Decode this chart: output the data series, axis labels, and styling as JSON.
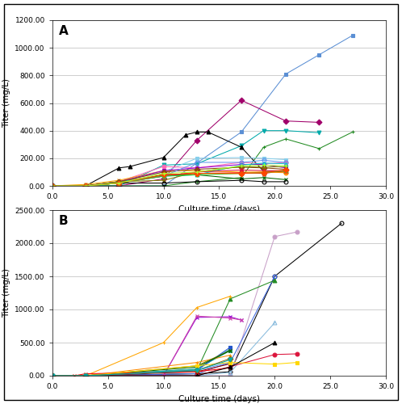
{
  "panel_A": {
    "title": "A",
    "ylabel": "Titer (mg/L)",
    "xlabel": "Culture time (days)",
    "xlim": [
      0,
      30
    ],
    "ylim": [
      0,
      1200
    ],
    "yticks": [
      0,
      200,
      400,
      600,
      800,
      1000,
      1200
    ],
    "xticks": [
      0,
      5,
      10,
      15,
      20,
      25,
      30
    ],
    "series": [
      {
        "color": "#5B8FD4",
        "marker": "s",
        "fillstyle": "full",
        "x": [
          0,
          3,
          6,
          10,
          13,
          17,
          21,
          24,
          27
        ],
        "y": [
          0,
          0,
          0,
          0,
          165,
          390,
          810,
          950,
          1090
        ]
      },
      {
        "color": "#A0006A",
        "marker": "D",
        "fillstyle": "full",
        "x": [
          0,
          3,
          6,
          10,
          13,
          17,
          21,
          24
        ],
        "y": [
          0,
          0,
          0,
          50,
          330,
          620,
          470,
          460
        ]
      },
      {
        "color": "#00AAAA",
        "marker": "v",
        "fillstyle": "full",
        "x": [
          0,
          3,
          6,
          10,
          13,
          17,
          19,
          21,
          24
        ],
        "y": [
          0,
          0,
          0,
          150,
          160,
          290,
          400,
          400,
          385
        ]
      },
      {
        "color": "#228B22",
        "marker": "+",
        "fillstyle": "full",
        "x": [
          0,
          3,
          6,
          10,
          13,
          17,
          19,
          21,
          24,
          27
        ],
        "y": [
          0,
          0,
          0,
          0,
          30,
          60,
          280,
          340,
          270,
          390
        ]
      },
      {
        "color": "#000000",
        "marker": "^",
        "fillstyle": "full",
        "x": [
          0,
          3,
          6,
          7,
          10,
          12,
          13,
          14,
          17,
          19,
          21
        ],
        "y": [
          0,
          0,
          130,
          140,
          205,
          370,
          390,
          390,
          280,
          105,
          105
        ]
      },
      {
        "color": "#87CEEB",
        "marker": "s",
        "fillstyle": "full",
        "x": [
          0,
          3,
          6,
          10,
          13,
          17,
          19,
          21
        ],
        "y": [
          0,
          0,
          30,
          100,
          200,
          205,
          200,
          190
        ]
      },
      {
        "color": "#FF69B4",
        "marker": "o",
        "fillstyle": "full",
        "x": [
          0,
          3,
          6,
          10,
          13,
          17,
          19,
          21
        ],
        "y": [
          0,
          0,
          30,
          140,
          130,
          170,
          160,
          170
        ]
      },
      {
        "color": "#FFA500",
        "marker": "x",
        "fillstyle": "full",
        "x": [
          0,
          3,
          6,
          10,
          13,
          17,
          19,
          21
        ],
        "y": [
          0,
          10,
          40,
          110,
          110,
          100,
          100,
          100
        ]
      },
      {
        "color": "#9400D3",
        "marker": "s",
        "fillstyle": "full",
        "x": [
          0,
          3,
          6,
          10,
          13,
          17,
          19,
          21
        ],
        "y": [
          0,
          0,
          30,
          110,
          130,
          155,
          155,
          130
        ]
      },
      {
        "color": "#FF0000",
        "marker": "o",
        "fillstyle": "full",
        "x": [
          0,
          3,
          6,
          10,
          13,
          17,
          19,
          21
        ],
        "y": [
          0,
          0,
          30,
          80,
          90,
          95,
          90,
          110
        ]
      },
      {
        "color": "#00CED1",
        "marker": "^",
        "fillstyle": "full",
        "x": [
          0,
          3,
          6,
          10,
          13,
          17,
          19,
          21
        ],
        "y": [
          0,
          0,
          30,
          70,
          80,
          150,
          165,
          160
        ]
      },
      {
        "color": "#8B4513",
        "marker": "D",
        "fillstyle": "full",
        "x": [
          0,
          3,
          6,
          10,
          13,
          17,
          19,
          21
        ],
        "y": [
          0,
          0,
          30,
          100,
          120,
          135,
          130,
          120
        ]
      },
      {
        "color": "#808000",
        "marker": "x",
        "fillstyle": "full",
        "x": [
          0,
          3,
          6,
          10,
          13,
          17,
          19,
          21
        ],
        "y": [
          0,
          0,
          30,
          40,
          100,
          140,
          135,
          140
        ]
      },
      {
        "color": "#FF8C00",
        "marker": "o",
        "fillstyle": "full",
        "x": [
          0,
          3,
          6,
          10,
          13,
          17,
          19,
          21
        ],
        "y": [
          0,
          0,
          20,
          80,
          90,
          90,
          100,
          95
        ]
      },
      {
        "color": "#006400",
        "marker": "x",
        "fillstyle": "full",
        "x": [
          0,
          3,
          6,
          10,
          13,
          17,
          19,
          21
        ],
        "y": [
          0,
          0,
          20,
          80,
          80,
          50,
          60,
          45
        ]
      },
      {
        "color": "#6495ED",
        "marker": "o",
        "fillstyle": "none",
        "x": [
          0,
          3,
          6,
          10,
          13,
          17,
          19,
          21
        ],
        "y": [
          0,
          0,
          20,
          70,
          170,
          170,
          185,
          170
        ]
      },
      {
        "color": "#000000",
        "marker": "o",
        "fillstyle": "none",
        "x": [
          0,
          3,
          6,
          10,
          13,
          17,
          19,
          21
        ],
        "y": [
          0,
          0,
          20,
          20,
          30,
          40,
          30,
          30
        ]
      },
      {
        "color": "#DC143C",
        "marker": "^",
        "fillstyle": "full",
        "x": [
          0,
          3,
          6,
          10,
          13,
          17,
          19,
          21
        ],
        "y": [
          0,
          0,
          20,
          70,
          100,
          115,
          110,
          110
        ]
      },
      {
        "color": "#32CD32",
        "marker": "s",
        "fillstyle": "full",
        "x": [
          0,
          3,
          6,
          10,
          13,
          17,
          19,
          21
        ],
        "y": [
          0,
          0,
          20,
          70,
          80,
          90,
          95,
          110
        ]
      },
      {
        "color": "#FF4500",
        "marker": "D",
        "fillstyle": "full",
        "x": [
          0,
          3,
          6,
          10,
          13,
          17,
          19,
          21
        ],
        "y": [
          0,
          0,
          20,
          80,
          90,
          90,
          95,
          115
        ]
      },
      {
        "color": "#ADFF2F",
        "marker": "+",
        "fillstyle": "full",
        "x": [
          0,
          3,
          6,
          10,
          13,
          17,
          19,
          21
        ],
        "y": [
          0,
          0,
          20,
          90,
          100,
          145,
          150,
          145
        ]
      }
    ]
  },
  "panel_B": {
    "title": "B",
    "ylabel": "Titer (mg/L)",
    "xlabel": "Culture time (days)",
    "xlim": [
      0,
      30
    ],
    "ylim": [
      0,
      2500
    ],
    "yticks": [
      0,
      500,
      1000,
      1500,
      2000,
      2500
    ],
    "xticks": [
      0,
      5,
      10,
      15,
      20,
      25,
      30
    ],
    "series": [
      {
        "color": "#000000",
        "marker": "o",
        "fillstyle": "none",
        "x": [
          0,
          3,
          13,
          16,
          20,
          26
        ],
        "y": [
          0,
          0,
          30,
          60,
          1500,
          2300
        ]
      },
      {
        "color": "#C8A0C8",
        "marker": "o",
        "fillstyle": "full",
        "x": [
          0,
          3,
          13,
          16,
          20,
          22
        ],
        "y": [
          0,
          0,
          0,
          0,
          2100,
          2170
        ]
      },
      {
        "color": "#4169E1",
        "marker": "s",
        "fillstyle": "none",
        "x": [
          0,
          3,
          13,
          16,
          20
        ],
        "y": [
          0,
          0,
          30,
          200,
          1500
        ]
      },
      {
        "color": "#228B22",
        "marker": "^",
        "fillstyle": "full",
        "x": [
          0,
          3,
          13,
          16,
          20
        ],
        "y": [
          0,
          0,
          80,
          1160,
          1440
        ]
      },
      {
        "color": "#FFA500",
        "marker": "+",
        "fillstyle": "full",
        "x": [
          0,
          3,
          10,
          13,
          16
        ],
        "y": [
          0,
          0,
          500,
          1030,
          1200
        ]
      },
      {
        "color": "#9400D3",
        "marker": "x",
        "fillstyle": "full",
        "x": [
          0,
          3,
          10,
          13,
          16,
          17
        ],
        "y": [
          0,
          0,
          0,
          880,
          890,
          840
        ]
      },
      {
        "color": "#CC44AA",
        "marker": "x",
        "fillstyle": "full",
        "x": [
          0,
          3,
          10,
          13,
          16,
          17
        ],
        "y": [
          0,
          0,
          0,
          900,
          870,
          840
        ]
      },
      {
        "color": "#88BBDD",
        "marker": "^",
        "fillstyle": "none",
        "x": [
          0,
          3,
          13,
          16,
          20
        ],
        "y": [
          0,
          0,
          0,
          50,
          800
        ]
      },
      {
        "color": "#008080",
        "marker": "x",
        "fillstyle": "full",
        "x": [
          0,
          3,
          13,
          16
        ],
        "y": [
          0,
          0,
          100,
          400
        ]
      },
      {
        "color": "#20B2AA",
        "marker": "s",
        "fillstyle": "full",
        "x": [
          0,
          3,
          13,
          16
        ],
        "y": [
          0,
          0,
          100,
          380
        ]
      },
      {
        "color": "#2255CC",
        "marker": "s",
        "fillstyle": "full",
        "x": [
          0,
          3,
          13,
          16
        ],
        "y": [
          0,
          0,
          80,
          430
        ]
      },
      {
        "color": "#DC143C",
        "marker": "o",
        "fillstyle": "full",
        "x": [
          0,
          3,
          13,
          20,
          22
        ],
        "y": [
          0,
          0,
          0,
          320,
          330
        ]
      },
      {
        "color": "#FF8C00",
        "marker": "+",
        "fillstyle": "full",
        "x": [
          0,
          3,
          13,
          16
        ],
        "y": [
          0,
          0,
          200,
          310
        ]
      },
      {
        "color": "#808000",
        "marker": "x",
        "fillstyle": "full",
        "x": [
          0,
          3,
          13,
          16
        ],
        "y": [
          0,
          0,
          150,
          380
        ]
      },
      {
        "color": "#006400",
        "marker": "x",
        "fillstyle": "full",
        "x": [
          0,
          3,
          13,
          16
        ],
        "y": [
          0,
          0,
          130,
          380
        ]
      },
      {
        "color": "#8B0000",
        "marker": "s",
        "fillstyle": "full",
        "x": [
          0,
          3,
          13,
          16
        ],
        "y": [
          0,
          0,
          60,
          180
        ]
      },
      {
        "color": "#FF0000",
        "marker": "x",
        "fillstyle": "full",
        "x": [
          2,
          3,
          13,
          16
        ],
        "y": [
          0,
          30,
          60,
          120
        ]
      },
      {
        "color": "#6495ED",
        "marker": "s",
        "fillstyle": "full",
        "x": [
          0,
          3,
          13,
          16
        ],
        "y": [
          0,
          0,
          80,
          200
        ]
      },
      {
        "color": "#FFD700",
        "marker": "s",
        "fillstyle": "full",
        "x": [
          0,
          3,
          13,
          16,
          20,
          22
        ],
        "y": [
          0,
          0,
          150,
          200,
          175,
          200
        ]
      },
      {
        "color": "#000000",
        "marker": "^",
        "fillstyle": "full",
        "x": [
          0,
          3,
          13,
          16,
          20
        ],
        "y": [
          0,
          0,
          0,
          130,
          500
        ]
      },
      {
        "color": "#8B6914",
        "marker": "D",
        "fillstyle": "full",
        "x": [
          0,
          3,
          13,
          16
        ],
        "y": [
          0,
          0,
          80,
          260
        ]
      },
      {
        "color": "#00AAAA",
        "marker": "v",
        "fillstyle": "full",
        "x": [
          0,
          3,
          13,
          16
        ],
        "y": [
          0,
          0,
          80,
          240
        ]
      }
    ]
  }
}
